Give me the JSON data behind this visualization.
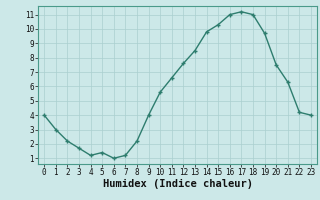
{
  "xlabel": "Humidex (Indice chaleur)",
  "x": [
    0,
    1,
    2,
    3,
    4,
    5,
    6,
    7,
    8,
    9,
    10,
    11,
    12,
    13,
    14,
    15,
    16,
    17,
    18,
    19,
    20,
    21,
    22,
    23
  ],
  "y": [
    4.0,
    3.0,
    2.2,
    1.7,
    1.2,
    1.4,
    1.0,
    1.2,
    2.2,
    4.0,
    5.6,
    6.6,
    7.6,
    8.5,
    9.8,
    10.3,
    11.0,
    11.2,
    11.0,
    9.7,
    7.5,
    6.3,
    4.2,
    4.0
  ],
  "line_color": "#2e7d6e",
  "marker": "+",
  "bg_color": "#cce8e8",
  "grid_color": "#aacfcf",
  "ylim": [
    0.6,
    11.6
  ],
  "xlim": [
    -0.5,
    23.5
  ],
  "yticks": [
    1,
    2,
    3,
    4,
    5,
    6,
    7,
    8,
    9,
    10,
    11
  ],
  "xticks": [
    0,
    1,
    2,
    3,
    4,
    5,
    6,
    7,
    8,
    9,
    10,
    11,
    12,
    13,
    14,
    15,
    16,
    17,
    18,
    19,
    20,
    21,
    22,
    23
  ],
  "tick_fontsize": 5.5,
  "xlabel_fontsize": 7.5,
  "spine_color": "#4a9a8a"
}
